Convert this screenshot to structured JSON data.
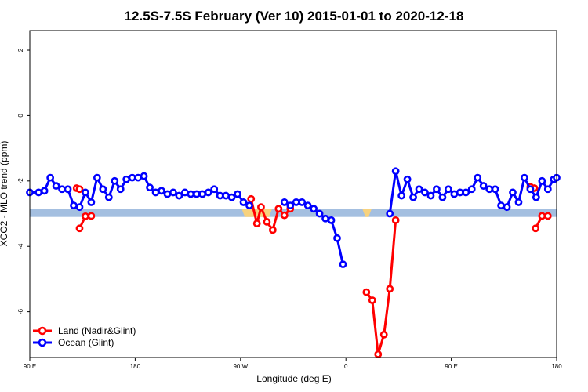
{
  "chart_data": {
    "type": "line",
    "title": "12.5S-7.5S February (Ver 10)   2015-01-01 to 2020-12-18",
    "xlabel": "Longitude (deg E)",
    "ylabel": "XCO2 - MLO trend (ppm)",
    "xlim": [
      90,
      540
    ],
    "ylim": [
      -7.4,
      2.6
    ],
    "x_ticks": [
      {
        "value": 90,
        "label": "90 E"
      },
      {
        "value": 180,
        "label": "180"
      },
      {
        "value": 270,
        "label": "90 W"
      },
      {
        "value": 360,
        "label": "0"
      },
      {
        "value": 450,
        "label": "90 E"
      },
      {
        "value": 540,
        "label": "180"
      }
    ],
    "y_ticks": [
      {
        "value": 2,
        "label": "2"
      },
      {
        "value": 0,
        "label": "0"
      },
      {
        "value": -2,
        "label": "-2"
      },
      {
        "value": -4,
        "label": "-4"
      },
      {
        "value": -6,
        "label": "-6"
      }
    ],
    "grid": false,
    "legend_position": "bottom-left",
    "band": {
      "y_top": -2.85,
      "y_bottom": -3.1,
      "color": "#a4bfe0"
    },
    "land_shading": {
      "color": "#f7d27e",
      "ranges": [
        [
          271,
          297
        ],
        [
          374,
          382
        ]
      ]
    },
    "series": [
      {
        "name": "Land (Nadir&Glint)",
        "color": "#ff0000",
        "segments": [
          [
            [
              130,
              -2.22
            ],
            [
              132.5,
              -2.25
            ]
          ],
          [
            [
              132.5,
              -3.45
            ],
            [
              137.5,
              -3.08
            ],
            [
              142.5,
              -3.07
            ]
          ],
          [
            [
              279,
              -2.55
            ],
            [
              284,
              -3.3
            ],
            [
              287.5,
              -2.8
            ],
            [
              292.5,
              -3.25
            ],
            [
              297.5,
              -3.5
            ],
            [
              302.5,
              -2.85
            ],
            [
              307.5,
              -3.05
            ],
            [
              312.5,
              -2.85
            ]
          ],
          [
            [
              377.5,
              -5.4
            ],
            [
              382.5,
              -5.65
            ],
            [
              387.5,
              -7.3
            ],
            [
              392.5,
              -6.7
            ],
            [
              397.5,
              -5.3
            ],
            [
              402.5,
              -3.2
            ]
          ],
          [
            [
              517.5,
              -2.18
            ],
            [
              521,
              -2.22
            ]
          ],
          [
            [
              522,
              -3.45
            ],
            [
              527.5,
              -3.07
            ],
            [
              532.5,
              -3.07
            ]
          ]
        ]
      },
      {
        "name": "Ocean (Glint)",
        "color": "#0000ff",
        "segments": [
          [
            [
              90,
              -2.35
            ],
            [
              97.5,
              -2.35
            ],
            [
              102.5,
              -2.3
            ],
            [
              107.5,
              -1.9
            ],
            [
              112.5,
              -2.15
            ],
            [
              117.5,
              -2.25
            ],
            [
              122.5,
              -2.25
            ],
            [
              127.5,
              -2.75
            ],
            [
              132.5,
              -2.8
            ],
            [
              137.5,
              -2.35
            ],
            [
              142.5,
              -2.65
            ],
            [
              147.5,
              -1.9
            ],
            [
              152.5,
              -2.25
            ],
            [
              157.5,
              -2.5
            ],
            [
              162.5,
              -2.0
            ],
            [
              167.5,
              -2.25
            ],
            [
              172.5,
              -1.95
            ],
            [
              177.5,
              -1.9
            ],
            [
              182.5,
              -1.9
            ],
            [
              187.5,
              -1.85
            ],
            [
              192.5,
              -2.2
            ],
            [
              197.5,
              -2.35
            ],
            [
              202.5,
              -2.3
            ],
            [
              207.5,
              -2.4
            ],
            [
              212.5,
              -2.35
            ],
            [
              217.5,
              -2.45
            ],
            [
              222.5,
              -2.35
            ],
            [
              227.5,
              -2.4
            ],
            [
              232.5,
              -2.4
            ],
            [
              237.5,
              -2.4
            ],
            [
              242.5,
              -2.35
            ],
            [
              247.5,
              -2.25
            ],
            [
              252.5,
              -2.45
            ],
            [
              257.5,
              -2.45
            ],
            [
              262.5,
              -2.5
            ],
            [
              267.5,
              -2.4
            ],
            [
              272.5,
              -2.65
            ],
            [
              277.5,
              -2.75
            ]
          ],
          [
            [
              307.5,
              -2.65
            ],
            [
              312.5,
              -2.75
            ],
            [
              317.5,
              -2.65
            ],
            [
              322.5,
              -2.65
            ],
            [
              327.5,
              -2.75
            ],
            [
              332.5,
              -2.85
            ],
            [
              337.5,
              -3.0
            ],
            [
              342.5,
              -3.15
            ],
            [
              347.5,
              -3.2
            ],
            [
              352.5,
              -3.75
            ],
            [
              357.5,
              -4.55
            ]
          ],
          [
            [
              397.5,
              -3.0
            ],
            [
              402.5,
              -1.7
            ],
            [
              407.5,
              -2.45
            ],
            [
              412.5,
              -1.95
            ],
            [
              417.5,
              -2.5
            ],
            [
              422.5,
              -2.25
            ],
            [
              427.5,
              -2.35
            ],
            [
              432.5,
              -2.45
            ],
            [
              437.5,
              -2.25
            ],
            [
              442.5,
              -2.5
            ],
            [
              447.5,
              -2.25
            ],
            [
              452.5,
              -2.4
            ],
            [
              457.5,
              -2.35
            ],
            [
              462.5,
              -2.35
            ],
            [
              467.5,
              -2.25
            ],
            [
              472.5,
              -1.9
            ],
            [
              477.5,
              -2.15
            ],
            [
              482.5,
              -2.25
            ],
            [
              487.5,
              -2.25
            ],
            [
              492.5,
              -2.75
            ],
            [
              497.5,
              -2.8
            ],
            [
              502.5,
              -2.35
            ],
            [
              507.5,
              -2.65
            ],
            [
              512.5,
              -1.9
            ],
            [
              517.5,
              -2.25
            ],
            [
              522.5,
              -2.5
            ],
            [
              527.5,
              -2.0
            ],
            [
              532.5,
              -2.25
            ],
            [
              537.5,
              -1.95
            ],
            [
              540,
              -1.9
            ]
          ]
        ]
      }
    ]
  }
}
